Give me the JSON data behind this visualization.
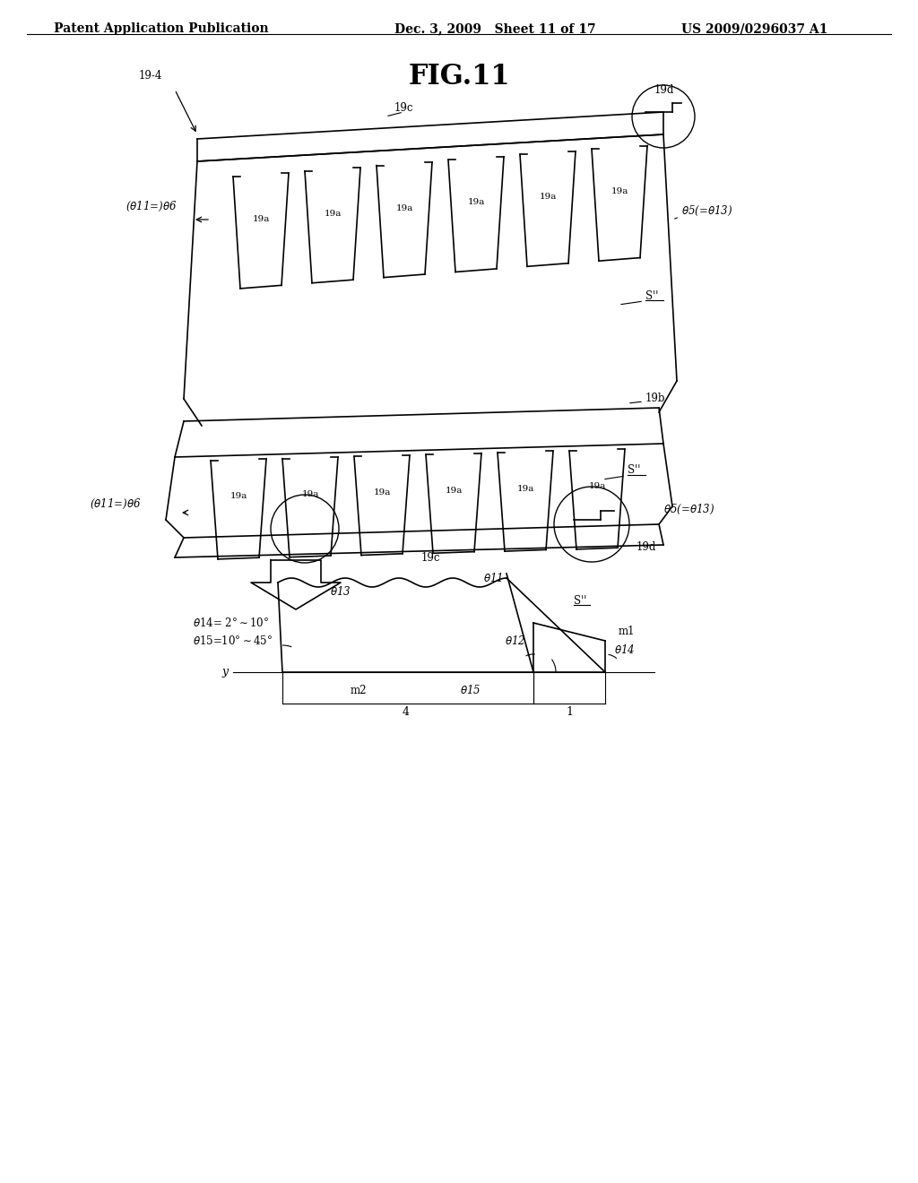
{
  "header_left": "Patent Application Publication",
  "header_mid": "Dec. 3, 2009   Sheet 11 of 17",
  "header_right": "US 2009/0296037 A1",
  "fig_title": "FIG.11",
  "bg_color": "#ffffff",
  "line_color": "#000000",
  "font_size_header": 10,
  "font_size_title": 22,
  "font_size_label": 9
}
